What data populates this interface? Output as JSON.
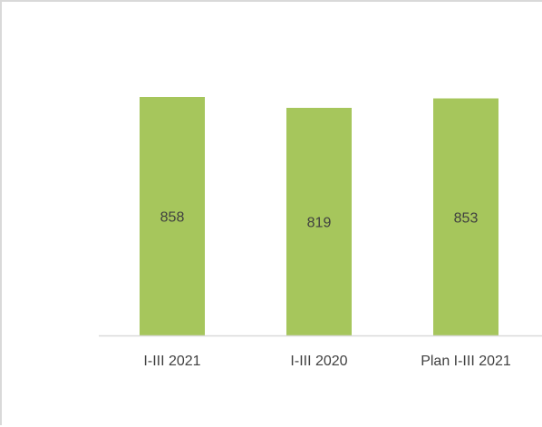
{
  "chart_data": {
    "type": "bar",
    "categories": [
      "I-III 2021",
      "I-III 2020",
      "Plan I-III 2021"
    ],
    "values": [
      858,
      819,
      853
    ],
    "title": "",
    "xlabel": "",
    "ylabel": "",
    "ylim": [
      0,
      900
    ],
    "grid": false,
    "legend": "none",
    "data_labels": "inside-center",
    "colors": {
      "bar": "#a6c65c",
      "axis": "#d9d9d9",
      "frame": "#d9d9d9",
      "text": "#404040"
    }
  }
}
